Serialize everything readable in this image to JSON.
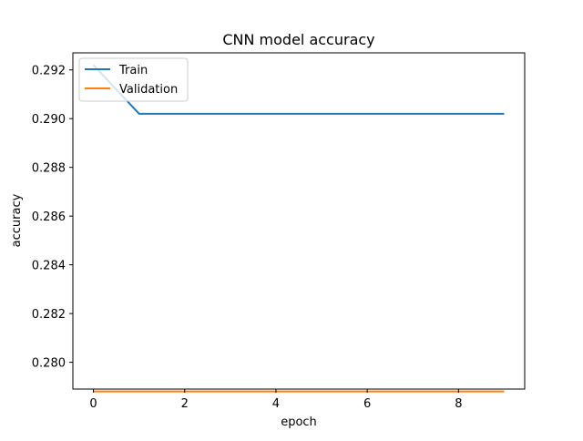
{
  "chart_data": {
    "type": "line",
    "title": "CNN model accuracy",
    "xlabel": "epoch",
    "ylabel": "accuracy",
    "x": [
      0,
      1,
      2,
      3,
      4,
      5,
      6,
      7,
      8,
      9
    ],
    "xlim": [
      -0.45,
      9.45
    ],
    "ylim": [
      0.2789,
      0.2927
    ],
    "xticks": [
      0,
      2,
      4,
      6,
      8
    ],
    "xtick_labels": [
      "0",
      "2",
      "4",
      "6",
      "8"
    ],
    "yticks": [
      0.28,
      0.282,
      0.284,
      0.286,
      0.288,
      0.29,
      0.292
    ],
    "ytick_labels": [
      "0.280",
      "0.282",
      "0.284",
      "0.286",
      "0.288",
      "0.290",
      "0.292"
    ],
    "grid": false,
    "legend_position": "top-left",
    "series": [
      {
        "name": "Train",
        "color": "#1f77b4",
        "values": [
          0.2922,
          0.2902,
          0.2902,
          0.2902,
          0.2902,
          0.2902,
          0.2902,
          0.2902,
          0.2902,
          0.2902
        ]
      },
      {
        "name": "Validation",
        "color": "#ff7f0e",
        "values": [
          0.2788,
          0.2788,
          0.2788,
          0.2788,
          0.2788,
          0.2788,
          0.2788,
          0.2788,
          0.2788,
          0.2788
        ]
      }
    ]
  }
}
